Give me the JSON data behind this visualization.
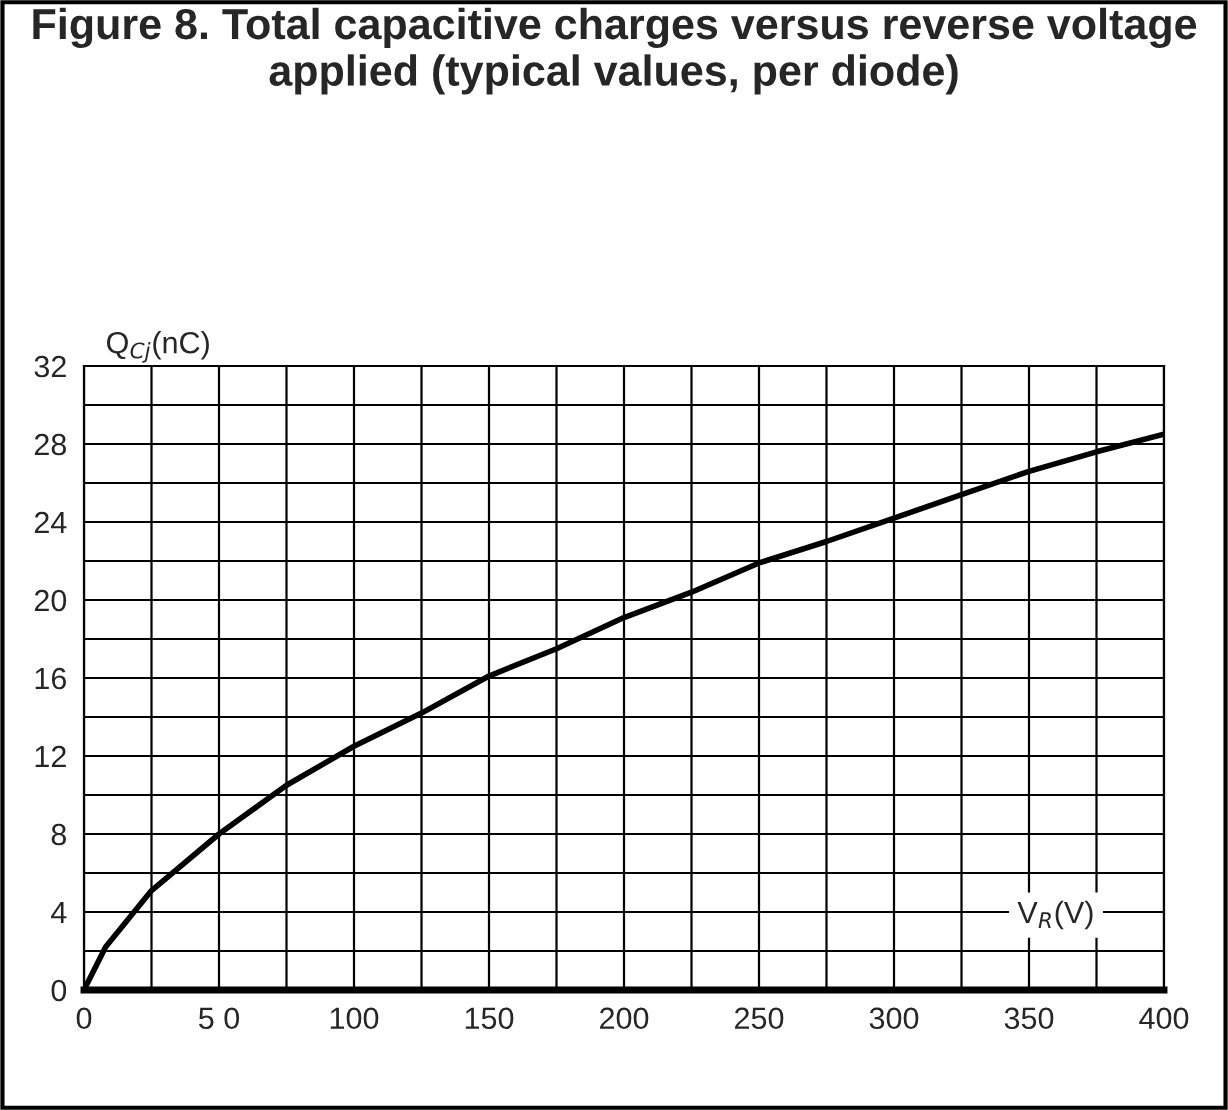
{
  "chart_data": {
    "type": "line",
    "title": "Figure 8. Total capacitive charges versus reverse voltage applied (typical values, per diode)",
    "xlabel": "V$_{R}$(V)",
    "ylabel": "Q$_{Cj}$(nC)",
    "x": [
      0,
      8,
      25,
      50,
      75,
      100,
      125,
      150,
      175,
      200,
      225,
      250,
      275,
      300,
      325,
      350,
      375,
      400
    ],
    "series": [
      {
        "color": "#000000",
        "values": [
          0,
          2.2,
          5.1,
          8.0,
          10.5,
          12.5,
          14.2,
          16.1,
          17.5,
          19.1,
          20.4,
          21.9,
          23.0,
          24.2,
          25.4,
          26.6,
          27.6,
          28.5
        ]
      }
    ],
    "xlim": [
      0,
      400
    ],
    "ylim": [
      0,
      32
    ],
    "xticks": [
      0,
      {
        "value": 25,
        "label": null
      },
      {
        "value": 50,
        "label": "5 0"
      },
      {
        "value": 75,
        "label": null
      },
      100,
      {
        "value": 125,
        "label": null
      },
      150,
      {
        "value": 175,
        "label": null
      },
      200,
      {
        "value": 225,
        "label": null
      },
      250,
      {
        "value": 275,
        "label": null
      },
      300,
      {
        "value": 325,
        "label": null
      },
      350,
      {
        "value": 375,
        "label": null
      },
      400
    ],
    "yticks": [
      0,
      {
        "value": 2,
        "label": null
      },
      4,
      {
        "value": 6,
        "label": null
      },
      8,
      {
        "value": 10,
        "label": null
      },
      12,
      {
        "value": 14,
        "label": null
      },
      16,
      {
        "value": 18,
        "label": null
      },
      20,
      {
        "value": 22,
        "label": null
      },
      24,
      {
        "value": 26,
        "label": null
      },
      28,
      {
        "value": 30,
        "label": null
      },
      32
    ],
    "grid": true,
    "line_style": "solid"
  }
}
